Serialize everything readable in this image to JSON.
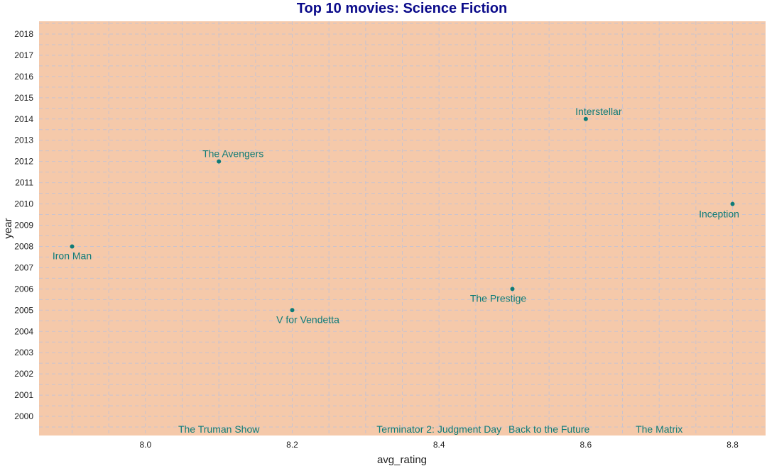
{
  "chart_data": {
    "type": "scatter",
    "title": "Top 10 movies: Science Fiction",
    "xlabel": "avg_rating",
    "ylabel": "year",
    "xlim": [
      7.855,
      8.845
    ],
    "ylim": [
      1999.1,
      2018.6
    ],
    "xticks": [
      8.0,
      8.2,
      8.4,
      8.6,
      8.8
    ],
    "xtick_labels": [
      "8.0",
      "8.2",
      "8.4",
      "8.6",
      "8.8"
    ],
    "yticks": [
      2000,
      2001,
      2002,
      2003,
      2004,
      2005,
      2006,
      2007,
      2008,
      2009,
      2010,
      2011,
      2012,
      2013,
      2014,
      2015,
      2016,
      2017,
      2018
    ],
    "grid": true,
    "panel_color": "#f5c9aa",
    "point_color": "#0e7b78",
    "title_color": "#0a0a8a",
    "points": [
      {
        "label": "Iron Man",
        "x": 7.9,
        "y": 2008
      },
      {
        "label": "The Avengers",
        "x": 8.1,
        "y": 2012
      },
      {
        "label": "V for Vendetta",
        "x": 8.2,
        "y": 2005
      },
      {
        "label": "The Prestige",
        "x": 8.5,
        "y": 2006
      },
      {
        "label": "Interstellar",
        "x": 8.6,
        "y": 2014
      },
      {
        "label": "Inception",
        "x": 8.8,
        "y": 2010
      }
    ],
    "annotations": [
      {
        "label": "The Truman Show",
        "x": 8.1,
        "y": 1999.5
      },
      {
        "label": "Terminator 2: Judgment Day",
        "x": 8.4,
        "y": 1999.5
      },
      {
        "label": "Back to the Future",
        "x": 8.55,
        "y": 1999.5
      },
      {
        "label": "The Matrix",
        "x": 8.7,
        "y": 1999.5
      }
    ]
  }
}
